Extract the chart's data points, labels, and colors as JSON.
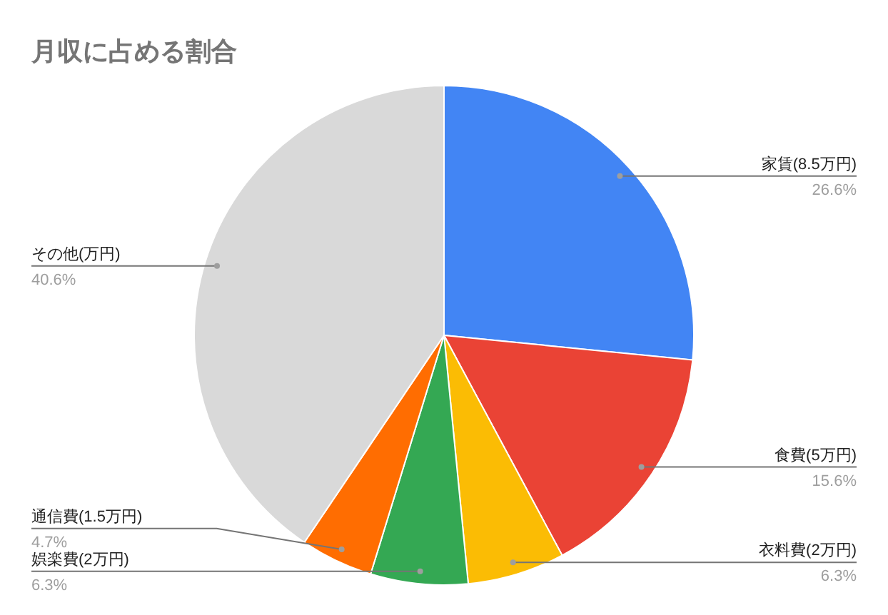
{
  "chart_data": {
    "type": "pie",
    "title": "月収に占める割合",
    "categories": [
      "家賃(8.5万円)",
      "食費(5万円)",
      "衣料費(2万円)",
      "娯楽費(2万円)",
      "通信費(1.5万円)",
      "その他(万円)"
    ],
    "values": [
      26.6,
      15.6,
      6.3,
      6.3,
      4.7,
      40.6
    ],
    "value_labels": [
      "26.6%",
      "15.6%",
      "6.3%",
      "6.3%",
      "4.7%",
      "40.6%"
    ],
    "colors": [
      "#4285f4",
      "#ea4335",
      "#fbbc04",
      "#34a853",
      "#ff6d01",
      "#d9d9d9"
    ]
  }
}
